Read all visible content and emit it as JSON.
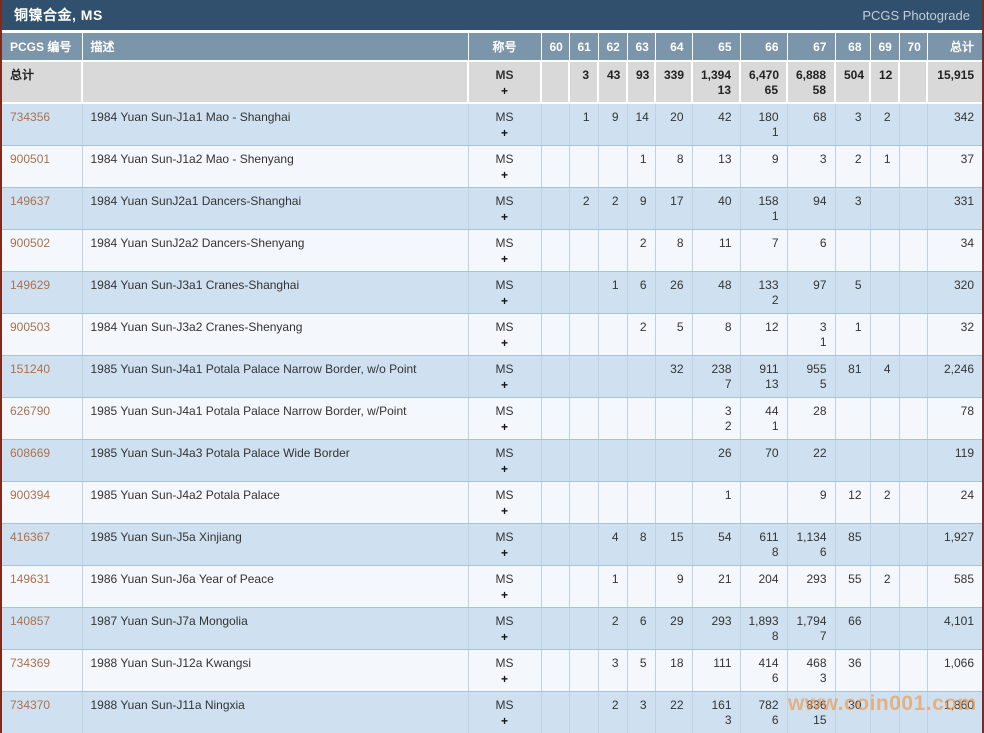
{
  "title_bar": {
    "title": "铜镍合金, MS",
    "right_link": "PCGS Photograde"
  },
  "watermark": "www.coin001.com",
  "colors": {
    "title_bar_bg": "#30506e",
    "header_bg": "#7b95aa",
    "total_row_bg": "#d9d9d9",
    "row_dark": "#cfe1f0",
    "row_light": "#f4f8fc",
    "pcgs_link": "#a9714f",
    "frame_border": "#7d2b1f",
    "watermark_color": "#ee9342"
  },
  "table": {
    "columns": [
      "PCGS 编号",
      "描述",
      "称号",
      "60",
      "61",
      "62",
      "63",
      "64",
      "65",
      "66",
      "67",
      "68",
      "69",
      "70",
      "总计"
    ],
    "designation": {
      "line1": "MS",
      "line2": "+"
    },
    "total_row": {
      "label": "总计",
      "description": "",
      "grades": [
        [
          "",
          ""
        ],
        [
          "3",
          ""
        ],
        [
          "43",
          ""
        ],
        [
          "93",
          ""
        ],
        [
          "339",
          ""
        ],
        [
          "1,394",
          "13"
        ],
        [
          "6,470",
          "65"
        ],
        [
          "6,888",
          "58"
        ],
        [
          "504",
          ""
        ],
        [
          "12",
          ""
        ],
        [
          "",
          ""
        ]
      ],
      "total": "15,915"
    },
    "rows": [
      {
        "pcgs_no": "734356",
        "description": "1984 Yuan Sun-J1a1 Mao - Shanghai",
        "grades": [
          [
            "",
            ""
          ],
          [
            "1",
            ""
          ],
          [
            "9",
            ""
          ],
          [
            "14",
            ""
          ],
          [
            "20",
            ""
          ],
          [
            "42",
            ""
          ],
          [
            "180",
            "1"
          ],
          [
            "68",
            ""
          ],
          [
            "3",
            ""
          ],
          [
            "2",
            ""
          ],
          [
            "",
            ""
          ]
        ],
        "total": "342"
      },
      {
        "pcgs_no": "900501",
        "description": "1984 Yuan Sun-J1a2 Mao - Shenyang",
        "grades": [
          [
            "",
            ""
          ],
          [
            "",
            ""
          ],
          [
            "",
            ""
          ],
          [
            "1",
            ""
          ],
          [
            "8",
            ""
          ],
          [
            "13",
            ""
          ],
          [
            "9",
            ""
          ],
          [
            "3",
            ""
          ],
          [
            "2",
            ""
          ],
          [
            "1",
            ""
          ],
          [
            "",
            ""
          ]
        ],
        "total": "37"
      },
      {
        "pcgs_no": "149637",
        "description": "1984 Yuan SunJ2a1 Dancers-Shanghai",
        "grades": [
          [
            "",
            ""
          ],
          [
            "2",
            ""
          ],
          [
            "2",
            ""
          ],
          [
            "9",
            ""
          ],
          [
            "17",
            ""
          ],
          [
            "40",
            ""
          ],
          [
            "158",
            "1"
          ],
          [
            "94",
            ""
          ],
          [
            "3",
            ""
          ],
          [
            "",
            ""
          ],
          [
            "",
            ""
          ]
        ],
        "total": "331"
      },
      {
        "pcgs_no": "900502",
        "description": "1984 Yuan SunJ2a2 Dancers-Shenyang",
        "grades": [
          [
            "",
            ""
          ],
          [
            "",
            ""
          ],
          [
            "",
            ""
          ],
          [
            "2",
            ""
          ],
          [
            "8",
            ""
          ],
          [
            "11",
            ""
          ],
          [
            "7",
            ""
          ],
          [
            "6",
            ""
          ],
          [
            "",
            ""
          ],
          [
            "",
            ""
          ],
          [
            "",
            ""
          ]
        ],
        "total": "34"
      },
      {
        "pcgs_no": "149629",
        "description": "1984 Yuan Sun-J3a1 Cranes-Shanghai",
        "grades": [
          [
            "",
            ""
          ],
          [
            "",
            ""
          ],
          [
            "1",
            ""
          ],
          [
            "6",
            ""
          ],
          [
            "26",
            ""
          ],
          [
            "48",
            ""
          ],
          [
            "133",
            "2"
          ],
          [
            "97",
            ""
          ],
          [
            "5",
            ""
          ],
          [
            "",
            ""
          ],
          [
            "",
            ""
          ]
        ],
        "total": "320"
      },
      {
        "pcgs_no": "900503",
        "description": "1984 Yuan Sun-J3a2 Cranes-Shenyang",
        "grades": [
          [
            "",
            ""
          ],
          [
            "",
            ""
          ],
          [
            "",
            ""
          ],
          [
            "2",
            ""
          ],
          [
            "5",
            ""
          ],
          [
            "8",
            ""
          ],
          [
            "12",
            ""
          ],
          [
            "3",
            "1"
          ],
          [
            "1",
            ""
          ],
          [
            "",
            ""
          ],
          [
            "",
            ""
          ]
        ],
        "total": "32"
      },
      {
        "pcgs_no": "151240",
        "description": "1985 Yuan Sun-J4a1 Potala Palace Narrow Border, w/o Point",
        "grades": [
          [
            "",
            ""
          ],
          [
            "",
            ""
          ],
          [
            "",
            ""
          ],
          [
            "",
            ""
          ],
          [
            "32",
            ""
          ],
          [
            "238",
            "7"
          ],
          [
            "911",
            "13"
          ],
          [
            "955",
            "5"
          ],
          [
            "81",
            ""
          ],
          [
            "4",
            ""
          ],
          [
            "",
            ""
          ]
        ],
        "total": "2,246"
      },
      {
        "pcgs_no": "626790",
        "description": "1985 Yuan Sun-J4a1 Potala Palace Narrow Border, w/Point",
        "grades": [
          [
            "",
            ""
          ],
          [
            "",
            ""
          ],
          [
            "",
            ""
          ],
          [
            "",
            ""
          ],
          [
            "",
            ""
          ],
          [
            "3",
            "2"
          ],
          [
            "44",
            "1"
          ],
          [
            "28",
            ""
          ],
          [
            "",
            ""
          ],
          [
            "",
            ""
          ],
          [
            "",
            ""
          ]
        ],
        "total": "78"
      },
      {
        "pcgs_no": "608669",
        "description": "1985 Yuan Sun-J4a3 Potala Palace Wide Border",
        "grades": [
          [
            "",
            ""
          ],
          [
            "",
            ""
          ],
          [
            "",
            ""
          ],
          [
            "",
            ""
          ],
          [
            "",
            ""
          ],
          [
            "26",
            ""
          ],
          [
            "70",
            ""
          ],
          [
            "22",
            ""
          ],
          [
            "",
            ""
          ],
          [
            "",
            ""
          ],
          [
            "",
            ""
          ]
        ],
        "total": "119"
      },
      {
        "pcgs_no": "900394",
        "description": "1985 Yuan Sun-J4a2 Potala Palace",
        "grades": [
          [
            "",
            ""
          ],
          [
            "",
            ""
          ],
          [
            "",
            ""
          ],
          [
            "",
            ""
          ],
          [
            "",
            ""
          ],
          [
            "1",
            ""
          ],
          [
            "",
            ""
          ],
          [
            "9",
            ""
          ],
          [
            "12",
            ""
          ],
          [
            "2",
            ""
          ],
          [
            "",
            ""
          ]
        ],
        "total": "24"
      },
      {
        "pcgs_no": "416367",
        "description": "1985 Yuan Sun-J5a Xinjiang",
        "grades": [
          [
            "",
            ""
          ],
          [
            "",
            ""
          ],
          [
            "4",
            ""
          ],
          [
            "8",
            ""
          ],
          [
            "15",
            ""
          ],
          [
            "54",
            ""
          ],
          [
            "611",
            "8"
          ],
          [
            "1,134",
            "6"
          ],
          [
            "85",
            ""
          ],
          [
            "",
            ""
          ],
          [
            "",
            ""
          ]
        ],
        "total": "1,927"
      },
      {
        "pcgs_no": "149631",
        "description": "1986 Yuan Sun-J6a Year of Peace",
        "grades": [
          [
            "",
            ""
          ],
          [
            "",
            ""
          ],
          [
            "1",
            ""
          ],
          [
            "",
            ""
          ],
          [
            "9",
            ""
          ],
          [
            "21",
            ""
          ],
          [
            "204",
            ""
          ],
          [
            "293",
            ""
          ],
          [
            "55",
            ""
          ],
          [
            "2",
            ""
          ],
          [
            "",
            ""
          ]
        ],
        "total": "585"
      },
      {
        "pcgs_no": "140857",
        "description": "1987 Yuan Sun-J7a Mongolia",
        "grades": [
          [
            "",
            ""
          ],
          [
            "",
            ""
          ],
          [
            "2",
            ""
          ],
          [
            "6",
            ""
          ],
          [
            "29",
            ""
          ],
          [
            "293",
            ""
          ],
          [
            "1,893",
            "8"
          ],
          [
            "1,794",
            "7"
          ],
          [
            "66",
            ""
          ],
          [
            "",
            ""
          ],
          [
            "",
            ""
          ]
        ],
        "total": "4,101"
      },
      {
        "pcgs_no": "734369",
        "description": "1988 Yuan Sun-J12a Kwangsi",
        "grades": [
          [
            "",
            ""
          ],
          [
            "",
            ""
          ],
          [
            "3",
            ""
          ],
          [
            "5",
            ""
          ],
          [
            "18",
            ""
          ],
          [
            "111",
            ""
          ],
          [
            "414",
            "6"
          ],
          [
            "468",
            "3"
          ],
          [
            "36",
            ""
          ],
          [
            "",
            ""
          ],
          [
            "",
            ""
          ]
        ],
        "total": "1,066"
      },
      {
        "pcgs_no": "734370",
        "description": "1988 Yuan Sun-J11a Ningxia",
        "grades": [
          [
            "",
            ""
          ],
          [
            "",
            ""
          ],
          [
            "2",
            ""
          ],
          [
            "3",
            ""
          ],
          [
            "22",
            ""
          ],
          [
            "161",
            "3"
          ],
          [
            "782",
            "6"
          ],
          [
            "836",
            "15"
          ],
          [
            "30",
            ""
          ],
          [
            "",
            ""
          ],
          [
            "",
            ""
          ]
        ],
        "total": "1,860"
      }
    ]
  }
}
